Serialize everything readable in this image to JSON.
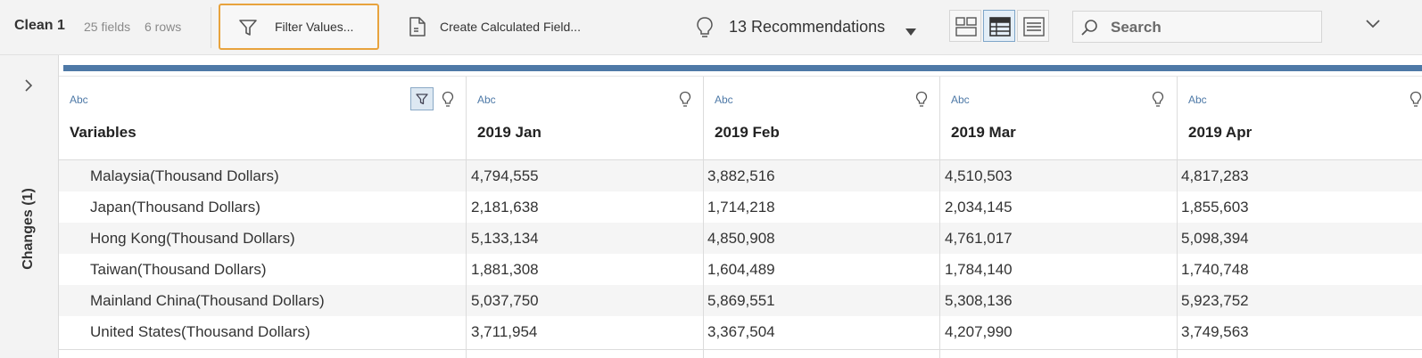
{
  "toolbar": {
    "step_title": "Clean 1",
    "field_count": "25 fields",
    "row_count": "6 rows",
    "filter_label": "Filter Values...",
    "calc_label": "Create Calculated Field...",
    "recommendations_label": "13 Recommendations",
    "search_placeholder": "Search",
    "view_modes": [
      "profile-grid",
      "data-grid",
      "list"
    ],
    "active_view": "data-grid",
    "accent_color": "#e8a33d"
  },
  "side_panel": {
    "changes_label": "Changes (1)"
  },
  "grid": {
    "accent_bar_color": "#4e79a7",
    "columns": [
      {
        "type": "Abc",
        "name": "Variables"
      },
      {
        "type": "Abc",
        "name": "2019 Jan"
      },
      {
        "type": "Abc",
        "name": "2019 Feb"
      },
      {
        "type": "Abc",
        "name": "2019 Mar"
      },
      {
        "type": "Abc",
        "name": "2019 Apr"
      }
    ],
    "rows": [
      [
        "Malaysia(Thousand Dollars)",
        "4,794,555",
        "3,882,516",
        "4,510,503",
        "4,817,283"
      ],
      [
        "Japan(Thousand Dollars)",
        "2,181,638",
        "1,714,218",
        "2,034,145",
        "1,855,603"
      ],
      [
        "Hong Kong(Thousand Dollars)",
        "5,133,134",
        "4,850,908",
        "4,761,017",
        "5,098,394"
      ],
      [
        "Taiwan(Thousand Dollars)",
        "1,881,308",
        "1,604,489",
        "1,784,140",
        "1,740,748"
      ],
      [
        "Mainland China(Thousand Dollars)",
        "5,037,750",
        "5,869,551",
        "5,308,136",
        "5,923,752"
      ],
      [
        "United States(Thousand Dollars)",
        "3,711,954",
        "3,367,504",
        "4,207,990",
        "3,749,563"
      ]
    ]
  }
}
